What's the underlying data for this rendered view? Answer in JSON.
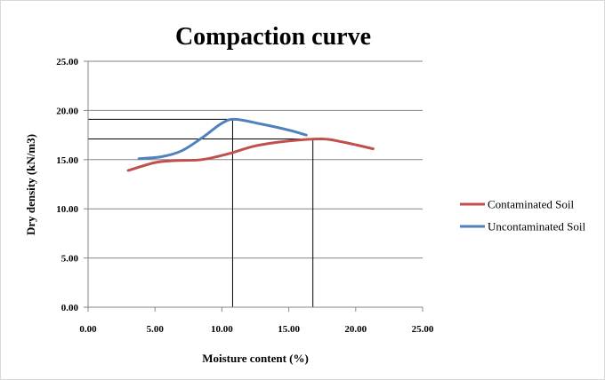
{
  "chart_data": {
    "type": "line",
    "title": "Compaction curve",
    "xlabel": "Moisture content (%)",
    "ylabel": "Dry density (kN/m3)",
    "xlim": [
      0,
      25
    ],
    "ylim": [
      0,
      25
    ],
    "x_ticks": [
      "0.00",
      "5.00",
      "10.00",
      "15.00",
      "20.00",
      "25.00"
    ],
    "y_ticks": [
      "0.00",
      "5.00",
      "10.00",
      "15.00",
      "20.00",
      "25.00"
    ],
    "grid": "horizontal",
    "legend_position": "right",
    "series": [
      {
        "name": "Contaminated Soil",
        "color": "#c0504d",
        "points": [
          [
            3.0,
            13.9
          ],
          [
            5.0,
            14.7
          ],
          [
            6.5,
            14.9
          ],
          [
            8.5,
            15.0
          ],
          [
            10.5,
            15.6
          ],
          [
            12.5,
            16.4
          ],
          [
            15.0,
            16.9
          ],
          [
            17.5,
            17.1
          ],
          [
            19.0,
            16.8
          ],
          [
            21.3,
            16.1
          ]
        ]
      },
      {
        "name": "Uncontaminated Soil",
        "color": "#4f81bd",
        "points": [
          [
            3.8,
            15.1
          ],
          [
            5.5,
            15.3
          ],
          [
            7.0,
            15.9
          ],
          [
            8.5,
            17.2
          ],
          [
            10.0,
            18.7
          ],
          [
            11.0,
            19.1
          ],
          [
            13.0,
            18.6
          ],
          [
            15.0,
            18.0
          ],
          [
            16.3,
            17.5
          ]
        ]
      }
    ],
    "reference_lines": [
      {
        "x": 10.8,
        "y": 19.1
      },
      {
        "x": 16.8,
        "y": 17.1
      }
    ]
  }
}
